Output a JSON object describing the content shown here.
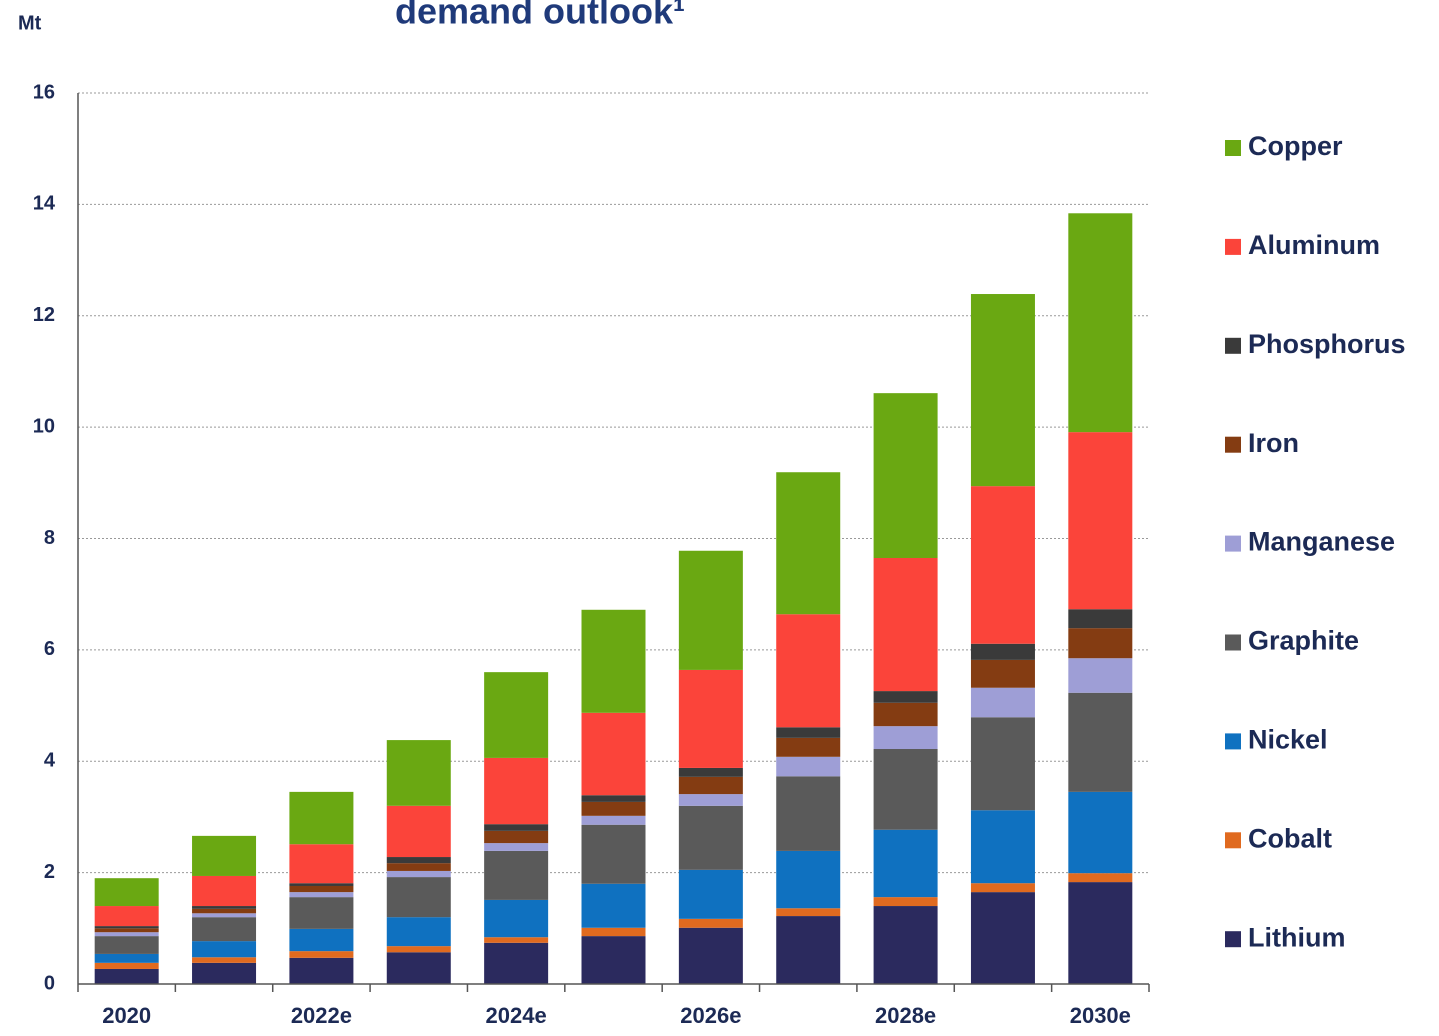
{
  "chart_data": {
    "type": "stacked_bar",
    "title": "demand outlook¹",
    "y_label": "Mt",
    "categories": [
      "2020",
      null,
      "2022e",
      null,
      "2024e",
      null,
      "2026e",
      null,
      "2028e",
      null,
      "2030e"
    ],
    "ylim": [
      0,
      16
    ],
    "yticks": [
      0,
      2,
      4,
      6,
      8,
      10,
      12,
      14,
      16
    ],
    "grid": true,
    "legend": "right",
    "series": [
      {
        "name": "Lithium",
        "color": "#2b2a5e",
        "values": [
          0.27,
          0.38,
          0.47,
          0.57,
          0.74,
          0.86,
          1.01,
          1.22,
          1.4,
          1.65,
          1.83
        ]
      },
      {
        "name": "Cobalt",
        "color": "#e06a1f",
        "values": [
          0.11,
          0.1,
          0.12,
          0.11,
          0.1,
          0.15,
          0.16,
          0.14,
          0.16,
          0.16,
          0.16
        ]
      },
      {
        "name": "Nickel",
        "color": "#0f71c0",
        "values": [
          0.16,
          0.29,
          0.4,
          0.52,
          0.67,
          0.79,
          0.88,
          1.03,
          1.21,
          1.31,
          1.46
        ]
      },
      {
        "name": "Graphite",
        "color": "#5a5a5a",
        "values": [
          0.32,
          0.43,
          0.57,
          0.72,
          0.88,
          1.06,
          1.15,
          1.34,
          1.45,
          1.67,
          1.78
        ]
      },
      {
        "name": "Manganese",
        "color": "#9e9ed6",
        "values": [
          0.07,
          0.07,
          0.09,
          0.11,
          0.14,
          0.16,
          0.21,
          0.35,
          0.41,
          0.53,
          0.62
        ]
      },
      {
        "name": "Iron",
        "color": "#843c12",
        "values": [
          0.07,
          0.08,
          0.11,
          0.14,
          0.22,
          0.25,
          0.31,
          0.34,
          0.42,
          0.5,
          0.54
        ]
      },
      {
        "name": "Phosphorus",
        "color": "#3a3a3a",
        "values": [
          0.04,
          0.05,
          0.05,
          0.11,
          0.12,
          0.12,
          0.16,
          0.19,
          0.21,
          0.29,
          0.34
        ]
      },
      {
        "name": "Aluminum",
        "color": "#fb443a",
        "values": [
          0.36,
          0.54,
          0.7,
          0.92,
          1.19,
          1.48,
          1.76,
          2.03,
          2.39,
          2.83,
          3.18
        ]
      },
      {
        "name": "Copper",
        "color": "#6aa812",
        "values": [
          0.5,
          0.72,
          0.94,
          1.18,
          1.54,
          1.85,
          2.14,
          2.55,
          2.96,
          3.45,
          3.93
        ]
      }
    ]
  }
}
